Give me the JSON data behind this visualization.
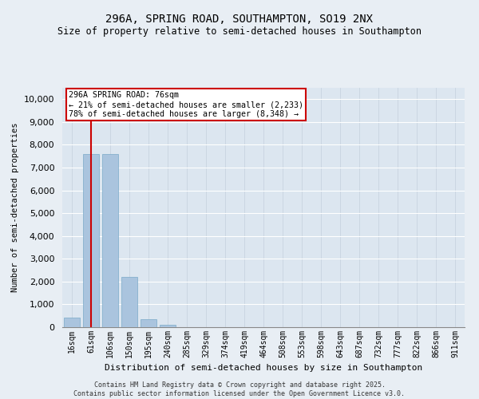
{
  "title": "296A, SPRING ROAD, SOUTHAMPTON, SO19 2NX",
  "subtitle": "Size of property relative to semi-detached houses in Southampton",
  "xlabel": "Distribution of semi-detached houses by size in Southampton",
  "ylabel": "Number of semi-detached properties",
  "categories": [
    "16sqm",
    "61sqm",
    "106sqm",
    "150sqm",
    "195sqm",
    "240sqm",
    "285sqm",
    "329sqm",
    "374sqm",
    "419sqm",
    "464sqm",
    "508sqm",
    "553sqm",
    "598sqm",
    "643sqm",
    "687sqm",
    "732sqm",
    "777sqm",
    "822sqm",
    "866sqm",
    "911sqm"
  ],
  "values": [
    430,
    7600,
    7600,
    2200,
    350,
    120,
    10,
    0,
    0,
    0,
    0,
    0,
    0,
    0,
    0,
    0,
    0,
    0,
    0,
    0,
    0
  ],
  "bar_color": "#aac4de",
  "bar_edge_color": "#7aaac8",
  "vline_x": 1,
  "vline_color": "#cc0000",
  "annotation_title": "296A SPRING ROAD: 76sqm",
  "annotation_line1": "← 21% of semi-detached houses are smaller (2,233)",
  "annotation_line2": "78% of semi-detached houses are larger (8,348) →",
  "annotation_box_color": "#cc0000",
  "ylim": [
    0,
    10500
  ],
  "yticks": [
    0,
    1000,
    2000,
    3000,
    4000,
    5000,
    6000,
    7000,
    8000,
    9000,
    10000
  ],
  "background_color": "#e8eef4",
  "plot_bg_color": "#dce6f0",
  "footer_line1": "Contains HM Land Registry data © Crown copyright and database right 2025.",
  "footer_line2": "Contains public sector information licensed under the Open Government Licence v3.0."
}
